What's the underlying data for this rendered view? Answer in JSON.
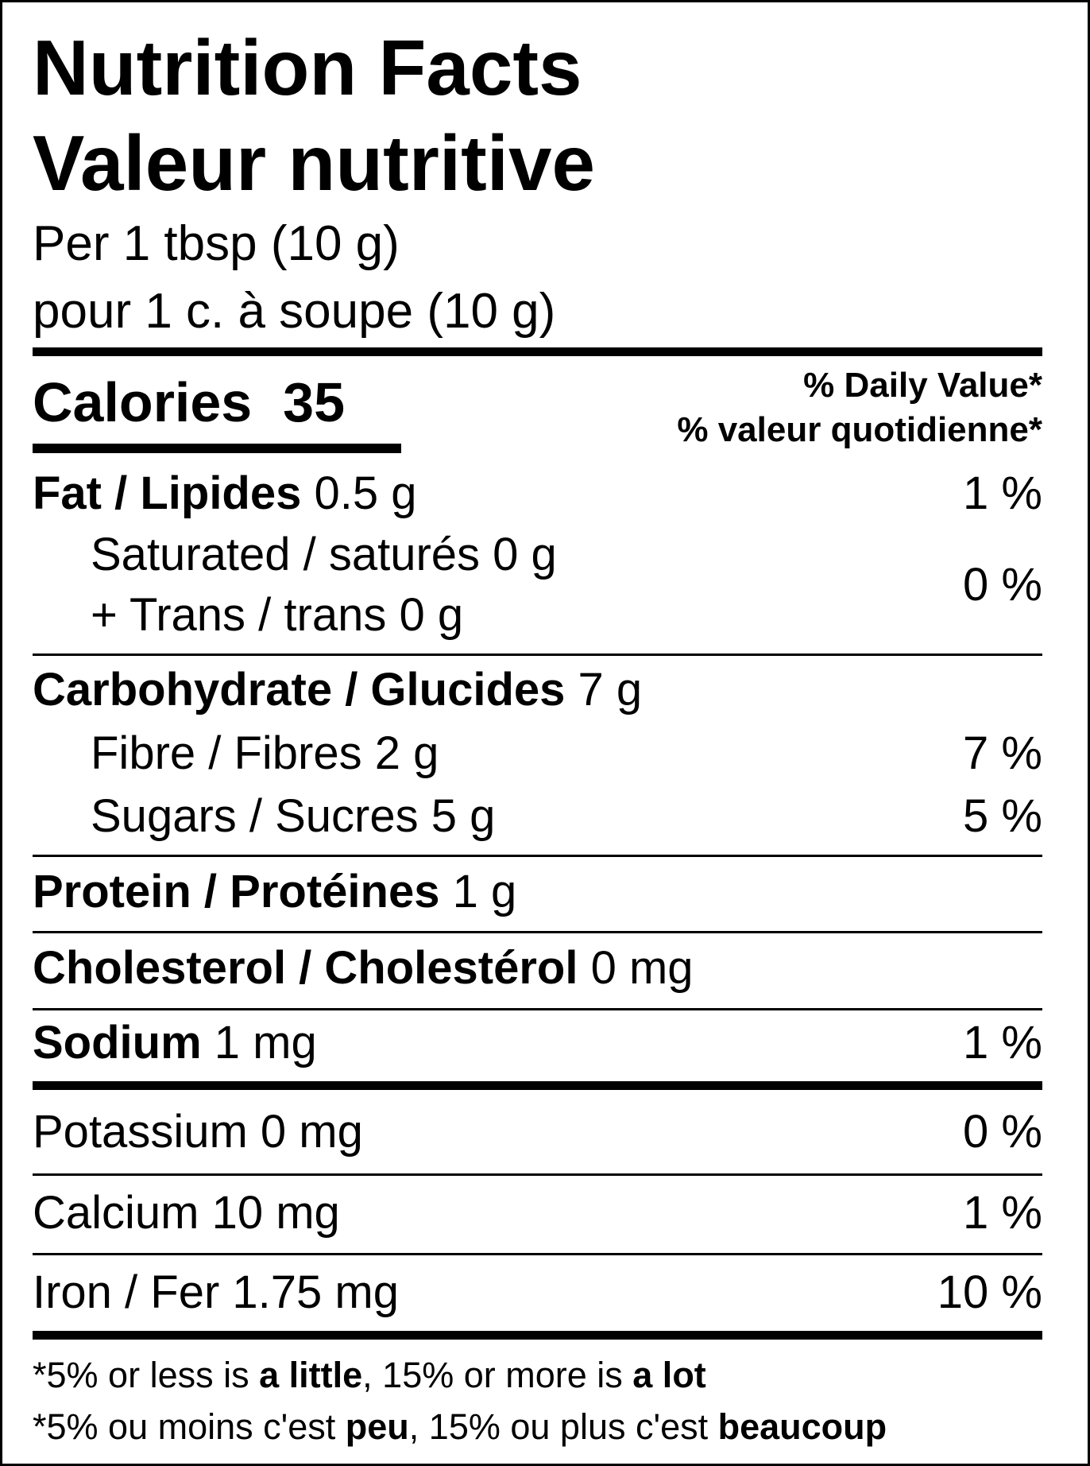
{
  "title_en": "Nutrition Facts",
  "title_fr": "Valeur nutritive",
  "serving_en": "Per 1 tbsp  (10 g)",
  "serving_fr": "pour 1 c. à soupe (10 g)",
  "calories": {
    "label": "Calories",
    "value": "35"
  },
  "daily_value": {
    "en": "% Daily Value*",
    "fr": "% valeur quotidienne*"
  },
  "nutrients": {
    "fat": {
      "label": "Fat / Lipides",
      "amount": "0.5 g",
      "dv": "1 %"
    },
    "saturated": {
      "label": "Saturated / saturés 0 g"
    },
    "trans": {
      "label": "+ Trans / trans 0 g",
      "dv": "0 %"
    },
    "carb": {
      "label": "Carbohydrate / Glucides",
      "amount": "7 g"
    },
    "fibre": {
      "label": "Fibre / Fibres 2 g",
      "dv": "7 %"
    },
    "sugars": {
      "label": "Sugars / Sucres 5 g",
      "dv": "5 %"
    },
    "protein": {
      "label": "Protein / Protéines",
      "amount": "1 g"
    },
    "cholesterol": {
      "label": "Cholesterol / Cholestérol",
      "amount": "0 mg"
    },
    "sodium": {
      "label": "Sodium",
      "amount": "1 mg",
      "dv": "1 %"
    },
    "potassium": {
      "label": "Potassium 0 mg",
      "dv": "0 %"
    },
    "calcium": {
      "label": "Calcium 10 mg",
      "dv": "1 %"
    },
    "iron": {
      "label": "Iron / Fer 1.75 mg",
      "dv": "10 %"
    }
  },
  "footnote": {
    "en": {
      "a": "*5% or less is ",
      "b": "a little",
      "c": ", 15% or more is ",
      "d": "a lot"
    },
    "fr": {
      "a": "*5% ou moins c'est ",
      "b": "peu",
      "c": ", 15% ou plus c'est ",
      "d": "beaucoup"
    }
  }
}
